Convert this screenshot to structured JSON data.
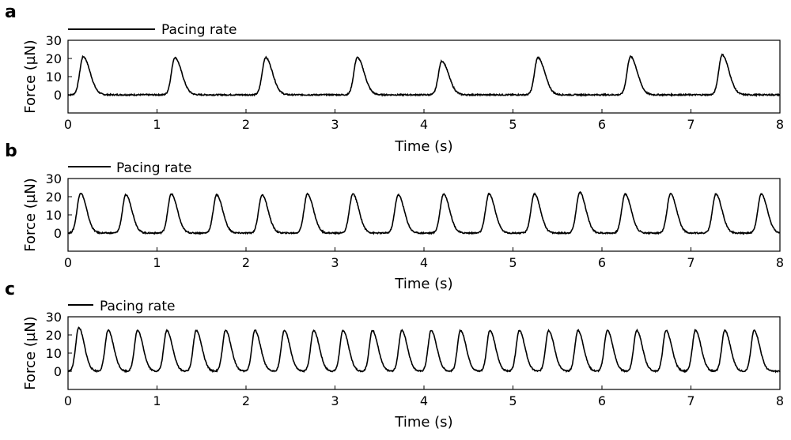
{
  "figure": {
    "panels": [
      {
        "letter": "a",
        "legend_label": "Pacing rate",
        "xlabel": "Time (s)",
        "ylabel": "Force (µN)",
        "xticks": [
          0,
          1,
          2,
          3,
          4,
          5,
          6,
          7,
          8
        ],
        "yticks": [
          0,
          10,
          20,
          30
        ]
      },
      {
        "letter": "b",
        "legend_label": "Pacing rate",
        "xlabel": "Time (s)",
        "ylabel": "Force (µN)",
        "xticks": [
          0,
          1,
          2,
          3,
          4,
          5,
          6,
          7,
          8
        ],
        "yticks": [
          0,
          10,
          20,
          30
        ]
      },
      {
        "letter": "c",
        "legend_label": "Pacing rate",
        "xlabel": "Time (s)",
        "ylabel": "Force (µN)",
        "xticks": [
          0,
          1,
          2,
          3,
          4,
          5,
          6,
          7,
          8
        ],
        "yticks": [
          0,
          10,
          20,
          30
        ]
      }
    ]
  },
  "chart_data": [
    {
      "type": "line",
      "panel": "a",
      "xlabel": "Time (s)",
      "ylabel": "Force (µN)",
      "xlim": [
        0,
        8
      ],
      "ylim": [
        -10,
        30
      ],
      "xticks": [
        0,
        1,
        2,
        3,
        4,
        5,
        6,
        7,
        8
      ],
      "yticks": [
        0,
        10,
        20,
        30
      ],
      "legend": "Pacing rate",
      "series": [
        {
          "peaks_x": [
            0.17,
            1.2,
            2.22,
            3.25,
            4.2,
            5.28,
            6.32,
            7.35
          ],
          "peaks_y": [
            21,
            20.5,
            20.5,
            20.5,
            18.5,
            20.5,
            21,
            22
          ],
          "baseline": 0,
          "rise_s": 0.09,
          "decay_s": 0.17
        }
      ]
    },
    {
      "type": "line",
      "panel": "b",
      "xlabel": "Time (s)",
      "ylabel": "Force (µN)",
      "xlim": [
        0,
        8
      ],
      "ylim": [
        -10,
        30
      ],
      "xticks": [
        0,
        1,
        2,
        3,
        4,
        5,
        6,
        7,
        8
      ],
      "yticks": [
        0,
        10,
        20,
        30
      ],
      "legend": "Pacing rate",
      "series": [
        {
          "peaks_x": [
            0.14,
            0.65,
            1.16,
            1.67,
            2.18,
            2.69,
            3.2,
            3.71,
            4.22,
            4.73,
            5.24,
            5.75,
            6.26,
            6.77,
            7.28,
            7.79
          ],
          "peaks_y": [
            22,
            21,
            21.5,
            21,
            21,
            21.5,
            21.5,
            21,
            21.5,
            21.5,
            21.5,
            22.5,
            21.5,
            21.5,
            21.5,
            21.5
          ],
          "baseline": 0,
          "rise_s": 0.09,
          "decay_s": 0.15
        }
      ]
    },
    {
      "type": "line",
      "panel": "c",
      "xlabel": "Time (s)",
      "ylabel": "Force (µN)",
      "xlim": [
        0,
        8
      ],
      "ylim": [
        -10,
        30
      ],
      "xticks": [
        0,
        1,
        2,
        3,
        4,
        5,
        6,
        7,
        8
      ],
      "yticks": [
        0,
        10,
        20,
        30
      ],
      "legend": "Pacing rate",
      "series": [
        {
          "peaks_x": [
            0.12,
            0.45,
            0.78,
            1.11,
            1.44,
            1.77,
            2.1,
            2.43,
            2.76,
            3.09,
            3.42,
            3.75,
            4.08,
            4.41,
            4.74,
            5.07,
            5.4,
            5.73,
            6.06,
            6.39,
            6.72,
            7.05,
            7.38,
            7.71
          ],
          "peaks_y": [
            24,
            22.5,
            22.5,
            22.5,
            22.5,
            22.5,
            22.5,
            22.5,
            22.5,
            22.5,
            22.5,
            22.5,
            22.5,
            22.5,
            22.5,
            22.5,
            22.5,
            22.5,
            22.5,
            22.5,
            22.5,
            22.5,
            22.5,
            22.5
          ],
          "baseline": 0,
          "rise_s": 0.08,
          "decay_s": 0.14
        }
      ]
    }
  ]
}
